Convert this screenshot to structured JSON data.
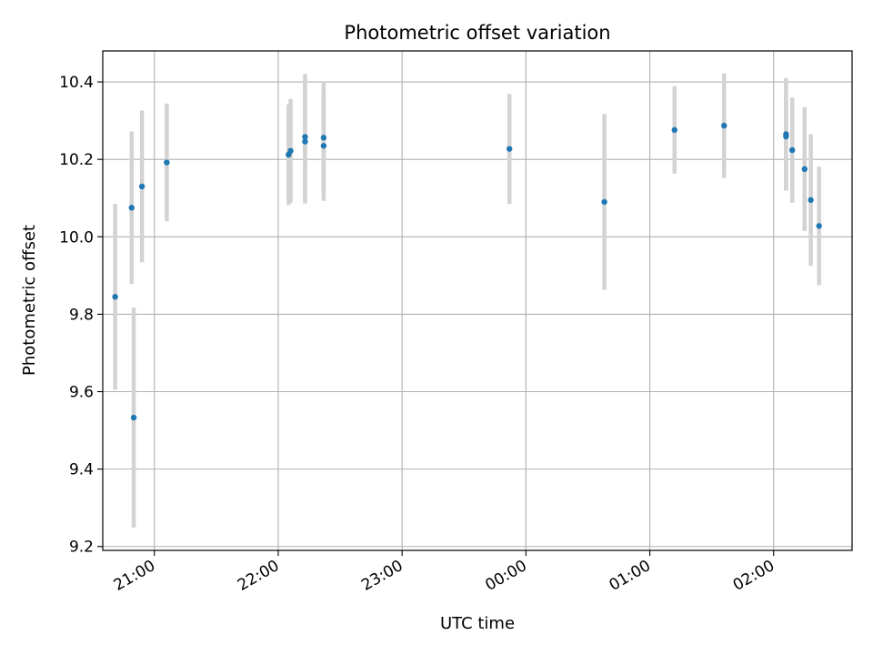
{
  "chart_data": {
    "type": "scatter",
    "title": "Photometric offset variation",
    "xlabel": "UTC time",
    "ylabel": "Photometric offset",
    "x_axis_type": "time",
    "xlim": [
      "20:35",
      "02:38"
    ],
    "ylim": [
      9.19,
      10.48
    ],
    "x_ticks": [
      "21:00",
      "22:00",
      "23:00",
      "00:00",
      "01:00",
      "02:00"
    ],
    "y_ticks": [
      "9.2",
      "9.4",
      "9.6",
      "9.8",
      "10.0",
      "10.2",
      "10.4"
    ],
    "grid": true,
    "marker_color": "#1f77b4",
    "errorbar_color": "#d3d3d3",
    "points": [
      {
        "x": "20:50",
        "y": 9.533,
        "err": 0.284
      },
      {
        "x": "20:41",
        "y": 9.845,
        "err": 0.24
      },
      {
        "x": "20:49",
        "y": 10.075,
        "err": 0.197
      },
      {
        "x": "20:54",
        "y": 10.13,
        "err": 0.196
      },
      {
        "x": "21:06",
        "y": 10.192,
        "err": 0.152
      },
      {
        "x": "22:05",
        "y": 10.212,
        "err": 0.13
      },
      {
        "x": "22:06",
        "y": 10.222,
        "err": 0.134
      },
      {
        "x": "22:13",
        "y": 10.258,
        "err": 0.163
      },
      {
        "x": "22:13",
        "y": 10.246,
        "err": 0.16
      },
      {
        "x": "22:22",
        "y": 10.256,
        "err": 0.144
      },
      {
        "x": "22:22",
        "y": 10.235,
        "err": 0.142
      },
      {
        "x": "23:52",
        "y": 10.227,
        "err": 0.142
      },
      {
        "x": "00:38",
        "y": 10.09,
        "err": 0.227
      },
      {
        "x": "01:12",
        "y": 10.276,
        "err": 0.113
      },
      {
        "x": "01:36",
        "y": 10.287,
        "err": 0.135
      },
      {
        "x": "02:06",
        "y": 10.265,
        "err": 0.145
      },
      {
        "x": "02:06",
        "y": 10.259,
        "err": 0.14
      },
      {
        "x": "02:09",
        "y": 10.224,
        "err": 0.136
      },
      {
        "x": "02:15",
        "y": 10.175,
        "err": 0.16
      },
      {
        "x": "02:18",
        "y": 10.095,
        "err": 0.17
      },
      {
        "x": "02:22",
        "y": 10.028,
        "err": 0.153
      }
    ]
  }
}
